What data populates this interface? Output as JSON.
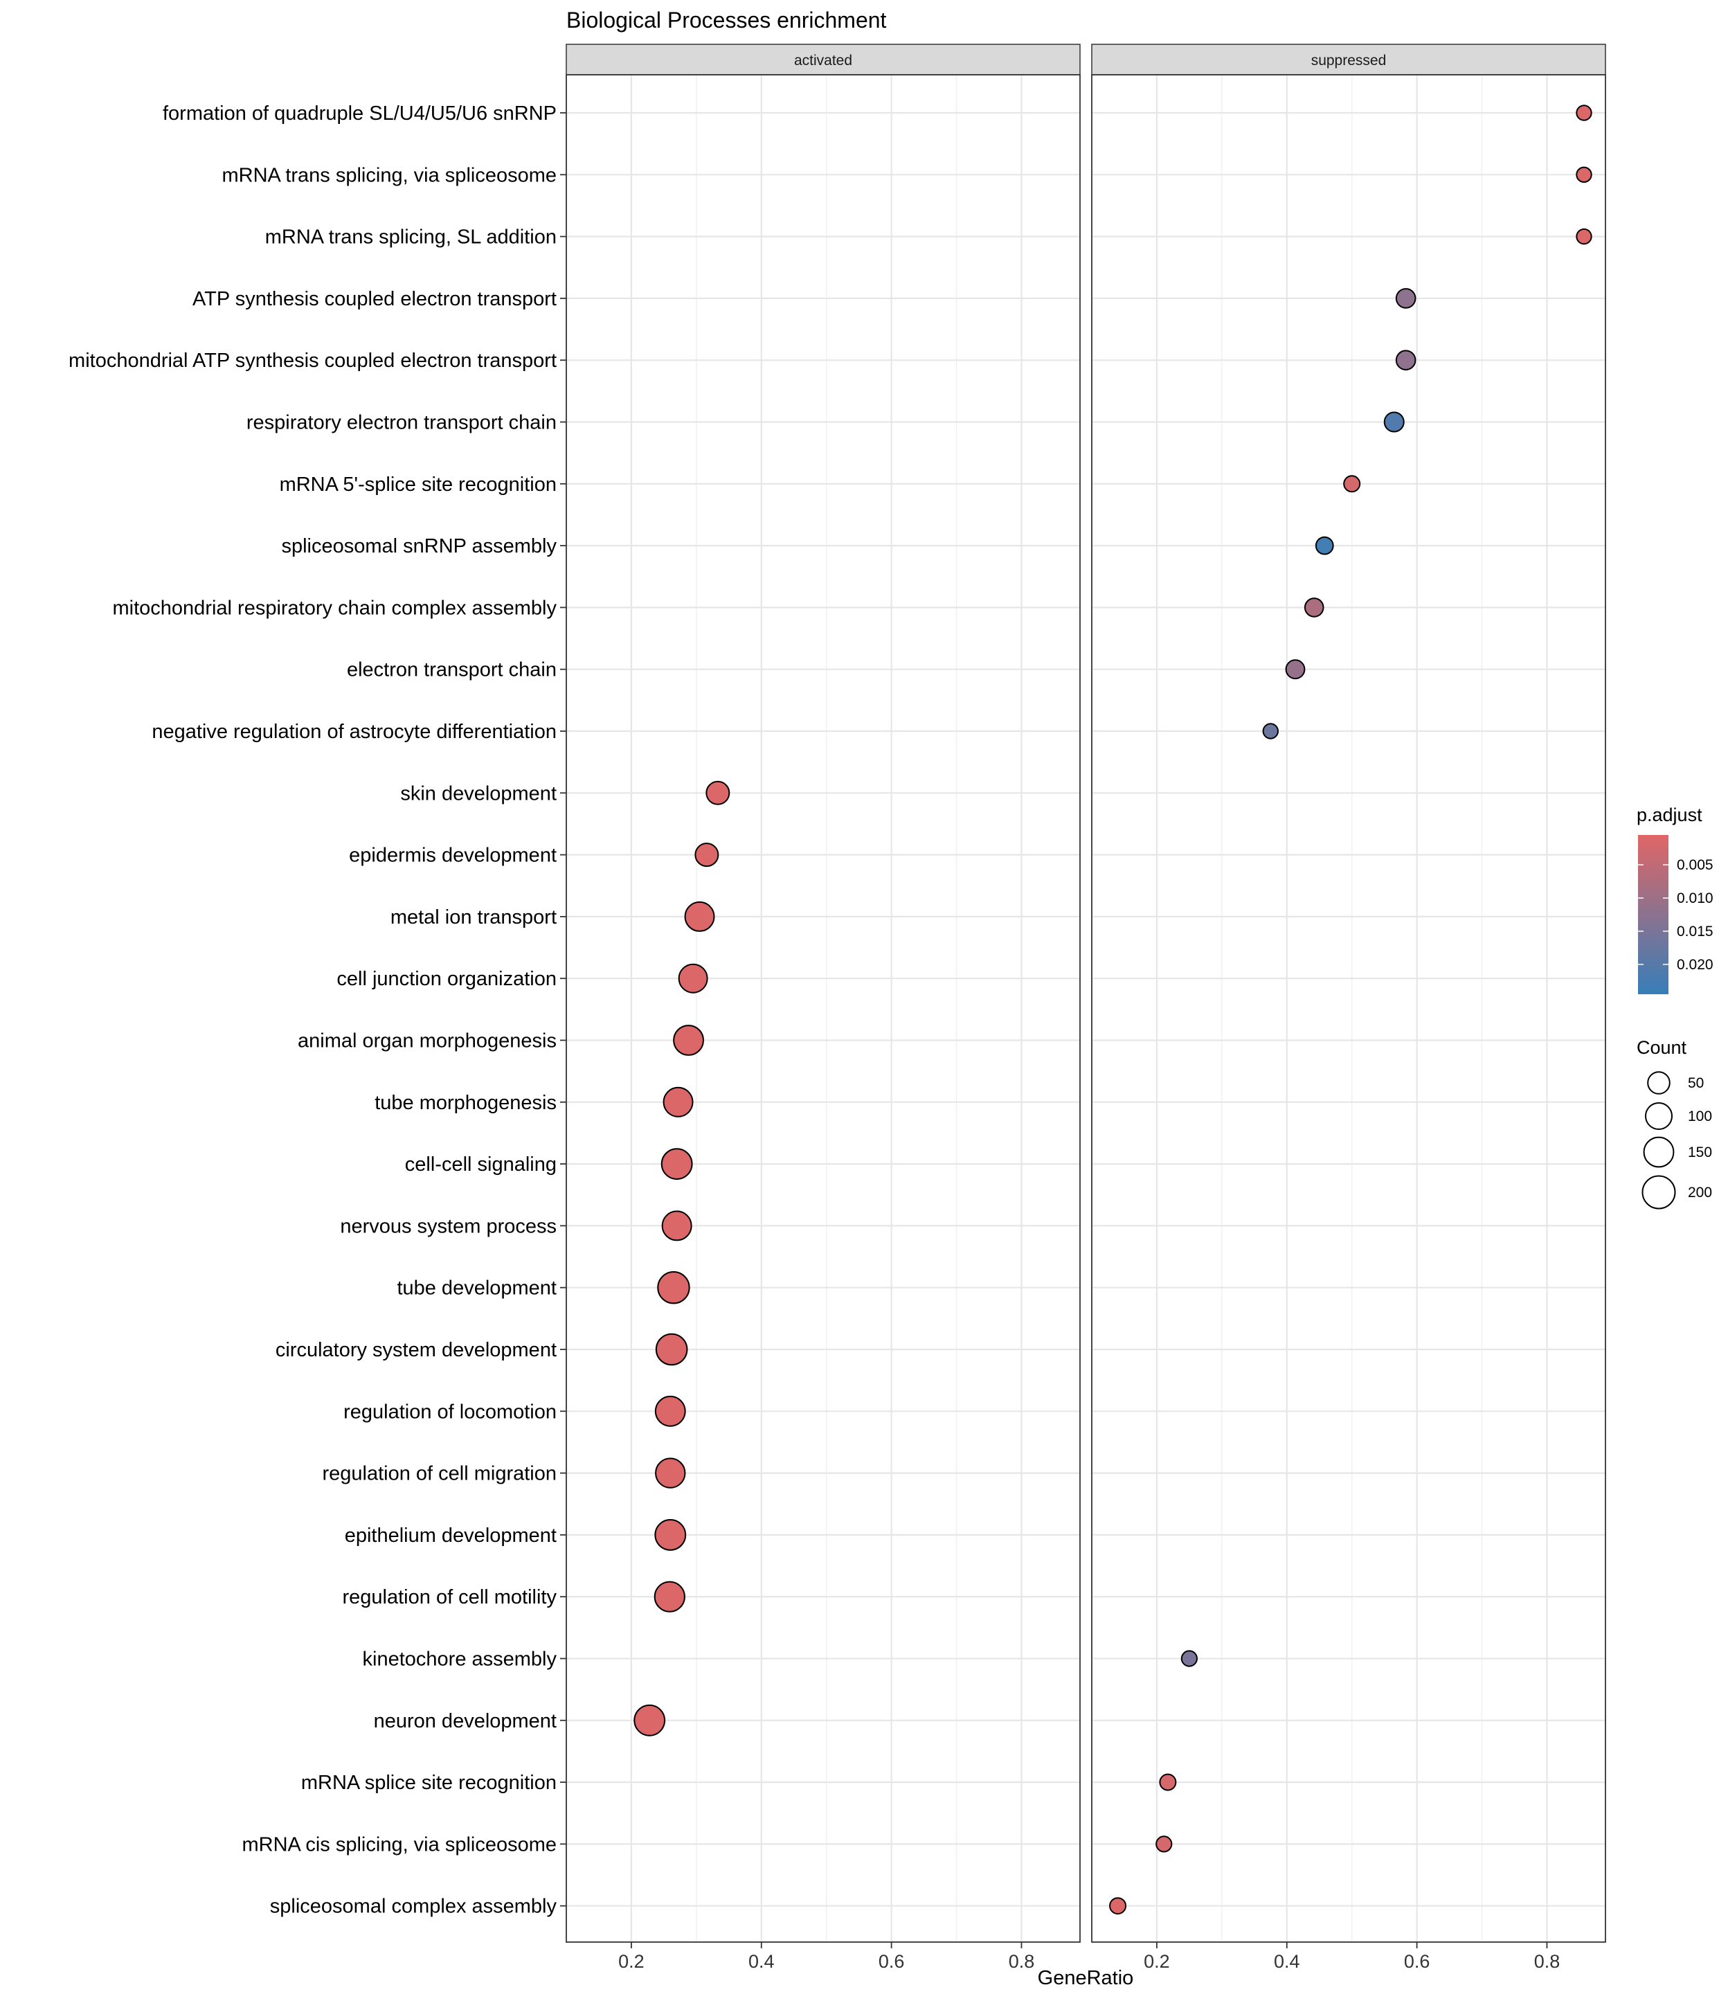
{
  "chart_data": {
    "type": "scatter",
    "title": "Biological Processes enrichment",
    "xlabel": "GeneRatio",
    "ylabel": "",
    "xlim": [
      0.1,
      0.89
    ],
    "x_ticks": [
      0.2,
      0.4,
      0.6,
      0.8
    ],
    "x_tick_labels": [
      "0.2",
      "0.4",
      "0.6",
      "0.8"
    ],
    "grid": true,
    "panels": [
      "activated",
      "suppressed"
    ],
    "categories": [
      "formation of quadruple SL/U4/U5/U6 snRNP",
      "mRNA trans splicing, via spliceosome",
      "mRNA trans splicing, SL addition",
      "ATP synthesis coupled electron transport",
      "mitochondrial ATP synthesis coupled electron transport",
      "respiratory electron transport chain",
      "mRNA 5'-splice site recognition",
      "spliceosomal snRNP assembly",
      "mitochondrial respiratory chain complex assembly",
      "electron transport chain",
      "negative regulation of astrocyte differentiation",
      "skin development",
      "epidermis development",
      "metal ion transport",
      "cell junction organization",
      "animal organ morphogenesis",
      "tube morphogenesis",
      "cell-cell signaling",
      "nervous system process",
      "tube development",
      "circulatory system development",
      "regulation of locomotion",
      "regulation of cell migration",
      "epithelium development",
      "regulation of cell motility",
      "kinetochore assembly",
      "neuron development",
      "mRNA splice site recognition",
      "mRNA cis splicing, via spliceosome",
      "spliceosomal complex assembly"
    ],
    "points": [
      {
        "category": "formation of quadruple SL/U4/U5/U6 snRNP",
        "panel": "suppressed",
        "gene_ratio": 0.857,
        "count": 6,
        "p_adjust": 0.001
      },
      {
        "category": "mRNA trans splicing, via spliceosome",
        "panel": "suppressed",
        "gene_ratio": 0.857,
        "count": 6,
        "p_adjust": 0.001
      },
      {
        "category": "mRNA trans splicing, SL addition",
        "panel": "suppressed",
        "gene_ratio": 0.857,
        "count": 6,
        "p_adjust": 0.001
      },
      {
        "category": "ATP synthesis coupled electron transport",
        "panel": "suppressed",
        "gene_ratio": 0.583,
        "count": 28,
        "p_adjust": 0.012
      },
      {
        "category": "mitochondrial ATP synthesis coupled electron transport",
        "panel": "suppressed",
        "gene_ratio": 0.583,
        "count": 28,
        "p_adjust": 0.012
      },
      {
        "category": "respiratory electron transport chain",
        "panel": "suppressed",
        "gene_ratio": 0.565,
        "count": 30,
        "p_adjust": 0.021
      },
      {
        "category": "mRNA 5'-splice site recognition",
        "panel": "suppressed",
        "gene_ratio": 0.5,
        "count": 10,
        "p_adjust": 0.002
      },
      {
        "category": "spliceosomal snRNP assembly",
        "panel": "suppressed",
        "gene_ratio": 0.458,
        "count": 16,
        "p_adjust": 0.023
      },
      {
        "category": "mitochondrial respiratory chain complex assembly",
        "panel": "suppressed",
        "gene_ratio": 0.442,
        "count": 23,
        "p_adjust": 0.008
      },
      {
        "category": "electron transport chain",
        "panel": "suppressed",
        "gene_ratio": 0.413,
        "count": 24,
        "p_adjust": 0.011
      },
      {
        "category": "negative regulation of astrocyte differentiation",
        "panel": "suppressed",
        "gene_ratio": 0.375,
        "count": 6,
        "p_adjust": 0.017
      },
      {
        "category": "skin development",
        "panel": "activated",
        "gene_ratio": 0.333,
        "count": 60,
        "p_adjust": 0.001
      },
      {
        "category": "epidermis development",
        "panel": "activated",
        "gene_ratio": 0.316,
        "count": 60,
        "p_adjust": 0.001
      },
      {
        "category": "metal ion transport",
        "panel": "activated",
        "gene_ratio": 0.305,
        "count": 140,
        "p_adjust": 0.001
      },
      {
        "category": "cell junction organization",
        "panel": "activated",
        "gene_ratio": 0.295,
        "count": 130,
        "p_adjust": 0.001
      },
      {
        "category": "animal organ morphogenesis",
        "panel": "activated",
        "gene_ratio": 0.288,
        "count": 150,
        "p_adjust": 0.001
      },
      {
        "category": "tube morphogenesis",
        "panel": "activated",
        "gene_ratio": 0.272,
        "count": 140,
        "p_adjust": 0.001
      },
      {
        "category": "cell-cell signaling",
        "panel": "activated",
        "gene_ratio": 0.27,
        "count": 160,
        "p_adjust": 0.001
      },
      {
        "category": "nervous system process",
        "panel": "activated",
        "gene_ratio": 0.27,
        "count": 140,
        "p_adjust": 0.001
      },
      {
        "category": "tube development",
        "panel": "activated",
        "gene_ratio": 0.265,
        "count": 180,
        "p_adjust": 0.001
      },
      {
        "category": "circulatory system development",
        "panel": "activated",
        "gene_ratio": 0.262,
        "count": 170,
        "p_adjust": 0.001
      },
      {
        "category": "regulation of locomotion",
        "panel": "activated",
        "gene_ratio": 0.26,
        "count": 150,
        "p_adjust": 0.001
      },
      {
        "category": "regulation of cell migration",
        "panel": "activated",
        "gene_ratio": 0.26,
        "count": 145,
        "p_adjust": 0.001
      },
      {
        "category": "epithelium development",
        "panel": "activated",
        "gene_ratio": 0.26,
        "count": 160,
        "p_adjust": 0.001
      },
      {
        "category": "regulation of cell motility",
        "panel": "activated",
        "gene_ratio": 0.259,
        "count": 155,
        "p_adjust": 0.001
      },
      {
        "category": "kinetochore assembly",
        "panel": "suppressed",
        "gene_ratio": 0.25,
        "count": 8,
        "p_adjust": 0.015
      },
      {
        "category": "neuron development",
        "panel": "activated",
        "gene_ratio": 0.228,
        "count": 160,
        "p_adjust": 0.001
      },
      {
        "category": "mRNA splice site recognition",
        "panel": "suppressed",
        "gene_ratio": 0.217,
        "count": 10,
        "p_adjust": 0.002
      },
      {
        "category": "mRNA cis splicing, via spliceosome",
        "panel": "suppressed",
        "gene_ratio": 0.211,
        "count": 8,
        "p_adjust": 0.002
      },
      {
        "category": "spliceosomal complex assembly",
        "panel": "suppressed",
        "gene_ratio": 0.14,
        "count": 10,
        "p_adjust": 0.001
      }
    ],
    "color_legend": {
      "title": "p.adjust",
      "range": [
        0.0005,
        0.0245
      ],
      "breaks": [
        0.005,
        0.01,
        0.015,
        0.02
      ],
      "labels": [
        "0.005",
        "0.010",
        "0.015",
        "0.020"
      ],
      "low_color": "#e06666",
      "high_color": "#377eb8"
    },
    "size_legend": {
      "title": "Count",
      "breaks": [
        50,
        100,
        150,
        200
      ],
      "labels": [
        "50",
        "100",
        "150",
        "200"
      ]
    }
  }
}
